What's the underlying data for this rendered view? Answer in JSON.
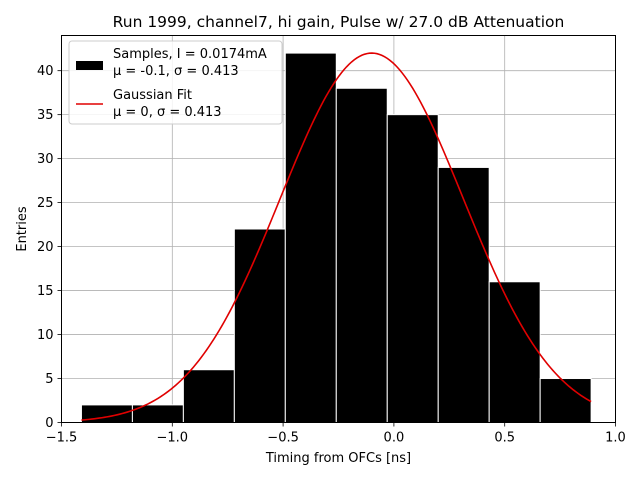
{
  "chart_data": {
    "type": "bar",
    "title": "Run 1999, channel7, hi gain, Pulse w/ 27.0 dB Attenuation",
    "xlabel": "Timing from OFCs [ns]",
    "ylabel": "Entries",
    "xlim": [
      -1.5,
      1.0
    ],
    "ylim": [
      0,
      44
    ],
    "xticks": [
      -1.5,
      -1.0,
      -0.5,
      0.0,
      0.5,
      1.0
    ],
    "xtick_labels": [
      "−1.5",
      "−1.0",
      "−0.5",
      "0.0",
      "0.5",
      "1.0"
    ],
    "yticks": [
      0,
      5,
      10,
      15,
      20,
      25,
      30,
      35,
      40
    ],
    "ytick_labels": [
      "0",
      "5",
      "10",
      "15",
      "20",
      "25",
      "30",
      "35",
      "40"
    ],
    "grid": true,
    "legend_position": "upper-left",
    "histogram": {
      "bin_edges": [
        -1.41,
        -1.18,
        -0.95,
        -0.72,
        -0.49,
        -0.26,
        -0.03,
        0.2,
        0.43,
        0.66,
        0.89
      ],
      "counts": [
        2,
        2,
        6,
        22,
        42,
        38,
        35,
        29,
        16,
        5
      ],
      "color": "#000000",
      "edge_color": "#ffffff"
    },
    "fit_curve": {
      "type": "gaussian",
      "mu": -0.1,
      "sigma": 0.413,
      "amplitude": 42,
      "x_range": [
        -1.41,
        0.89
      ],
      "color": "#e00000"
    },
    "legend": [
      {
        "label_line1": "Samples, I = 0.0174mA",
        "label_line2": "μ = -0.1, σ = 0.413",
        "marker": "patch",
        "color": "#000000"
      },
      {
        "label_line1": "Gaussian Fit",
        "label_line2": "μ = 0, σ = 0.413",
        "marker": "line",
        "color": "#e00000"
      }
    ]
  }
}
